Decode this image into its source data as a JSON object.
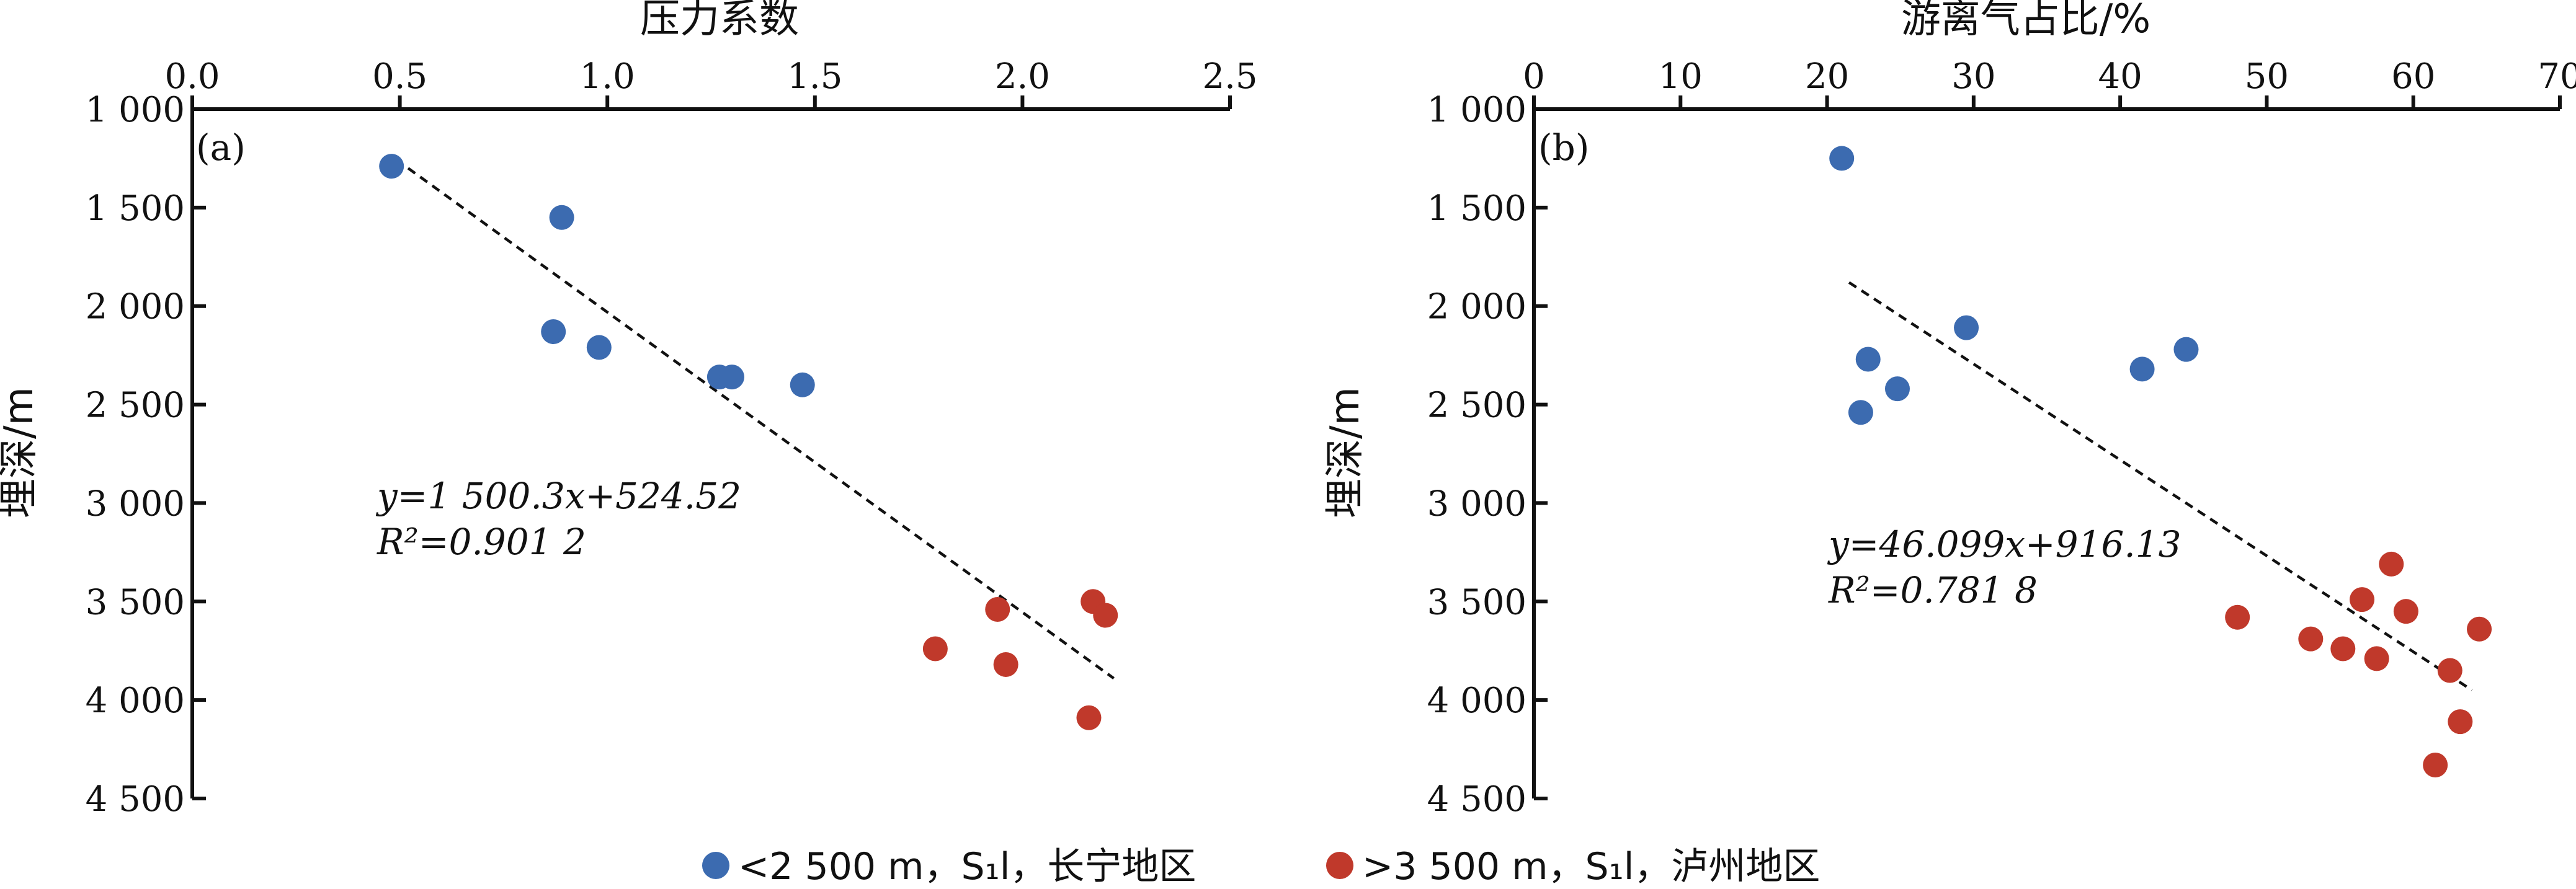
{
  "legend": {
    "items": [
      {
        "label": "<2 500 m，S₁l，长宁地区",
        "color": "#3c6bb0"
      },
      {
        "label": ">3 500 m，S₁l，泸州地区",
        "color": "#c0392b"
      }
    ]
  },
  "chart_data": [
    {
      "type": "scatter",
      "panel": "(a)",
      "xlabel": "压力系数",
      "ylabel": "埋深/m",
      "xlim": [
        0,
        2.5
      ],
      "ylim": [
        1000,
        4500
      ],
      "y_inverted": true,
      "x_ticks": [
        "0.0",
        "0.5",
        "1.0",
        "1.5",
        "2.0",
        "2.5"
      ],
      "x_tick_values": [
        0,
        0.5,
        1.0,
        1.5,
        2.0,
        2.5
      ],
      "y_ticks": [
        "1 000",
        "1 500",
        "2 000",
        "2 500",
        "3 000",
        "3 500",
        "4 000",
        "4 500"
      ],
      "y_tick_values": [
        1000,
        1500,
        2000,
        2500,
        3000,
        3500,
        4000,
        4500
      ],
      "series": [
        {
          "name": "<2 500 m，S₁l，长宁地区",
          "color": "#3c6bb0",
          "points": [
            [
              0.48,
              1290
            ],
            [
              0.89,
              1550
            ],
            [
              0.87,
              2130
            ],
            [
              0.98,
              2210
            ],
            [
              1.27,
              2360
            ],
            [
              1.3,
              2360
            ],
            [
              1.47,
              2400
            ]
          ]
        },
        {
          "name": ">3 500 m，S₁l，泸州地区",
          "color": "#c0392b",
          "points": [
            [
              1.79,
              3740
            ],
            [
              1.94,
              3540
            ],
            [
              1.96,
              3820
            ],
            [
              2.17,
              3500
            ],
            [
              2.2,
              3570
            ],
            [
              2.16,
              4090
            ]
          ]
        }
      ],
      "trendline": {
        "x": [
          0.52,
          2.22
        ],
        "y": [
          1300,
          3890
        ]
      },
      "equation": "y=1 500.3x+524.52",
      "r2": "R²=0.901 2"
    },
    {
      "type": "scatter",
      "panel": "(b)",
      "xlabel": "游离气占比/%",
      "ylabel": "埋深/m",
      "xlim": [
        0,
        70
      ],
      "ylim": [
        1000,
        4500
      ],
      "y_inverted": true,
      "x_ticks": [
        "0",
        "10",
        "20",
        "30",
        "40",
        "50",
        "60",
        "70"
      ],
      "x_tick_values": [
        0,
        10,
        20,
        30,
        40,
        50,
        60,
        70
      ],
      "y_ticks": [
        "1 000",
        "1 500",
        "2 000",
        "2 500",
        "3 000",
        "3 500",
        "4 000",
        "4 500"
      ],
      "y_tick_values": [
        1000,
        1500,
        2000,
        2500,
        3000,
        3500,
        4000,
        4500
      ],
      "series": [
        {
          "name": "<2 500 m，S₁l，长宁地区",
          "color": "#3c6bb0",
          "points": [
            [
              21.0,
              1250
            ],
            [
              22.8,
              2270
            ],
            [
              22.3,
              2540
            ],
            [
              24.8,
              2420
            ],
            [
              29.5,
              2110
            ],
            [
              41.5,
              2320
            ],
            [
              44.5,
              2220
            ]
          ]
        },
        {
          "name": ">3 500 m，S₁l，泸州地区",
          "color": "#c0392b",
          "points": [
            [
              48.0,
              3580
            ],
            [
              53.0,
              3690
            ],
            [
              55.2,
              3740
            ],
            [
              56.5,
              3490
            ],
            [
              57.5,
              3790
            ],
            [
              58.5,
              3310
            ],
            [
              59.5,
              3550
            ],
            [
              62.5,
              3850
            ],
            [
              63.2,
              4110
            ],
            [
              61.5,
              4330
            ],
            [
              64.5,
              3640
            ]
          ]
        }
      ],
      "trendline": {
        "x": [
          21.5,
          64.0
        ],
        "y": [
          1880,
          3950
        ]
      },
      "equation": "y=46.099x+916.13",
      "r2": "R²=0.781 8"
    }
  ]
}
